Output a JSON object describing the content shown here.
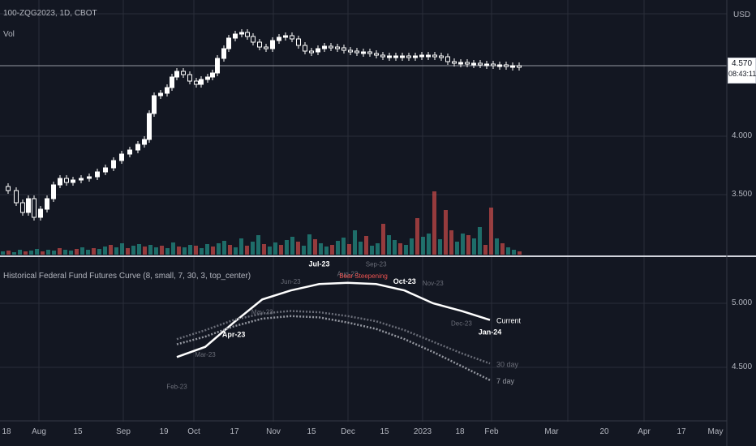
{
  "header": {
    "ticker": "100-ZQG2023, 1D, CBOT",
    "volume_label": "Vol",
    "currency": "USD"
  },
  "price_axis": {
    "ticks": [
      "4.000",
      "3.500"
    ]
  },
  "last_price": {
    "value": "4.570",
    "countdown": "08:43:11"
  },
  "indicator": {
    "title": "Historical Federal Fund Futures Curve (8, small, 7, 30, 3, top_center)",
    "axis_ticks": [
      "5.000",
      "4.500"
    ],
    "regime_label": "Bear Steepening"
  },
  "time_axis": {
    "labels": [
      "18",
      "Aug",
      "15",
      "Sep",
      "19",
      "Oct",
      "17",
      "Nov",
      "15",
      "Dec",
      "15",
      "2023",
      "18",
      "Feb",
      "Mar",
      "20",
      "Apr",
      "17",
      "May"
    ]
  },
  "colors": {
    "background": "#131722",
    "up_candle": "#ffffff",
    "down_candle": "#ffffff",
    "vol_up": "#26a69a",
    "vol_down": "#ef5350",
    "regime": "#ef5350"
  },
  "chart_data": [
    {
      "type": "line",
      "title": "",
      "x_labels": [
        "Feb-23",
        "Mar-23",
        "Apr-23",
        "May-23",
        "Jun-23",
        "Jul-23",
        "Aug-23",
        "Sep-23",
        "Oct-23",
        "Nov-23",
        "Dec-23",
        "Jan-24"
      ],
      "series": [
        {
          "name": "Current",
          "values": [
            4.58,
            4.66,
            4.85,
            5.03,
            5.1,
            5.15,
            5.16,
            5.15,
            5.1,
            5.0,
            4.94,
            4.87
          ]
        },
        {
          "name": "7 day",
          "values": [
            4.68,
            4.74,
            4.82,
            4.88,
            4.9,
            4.89,
            4.85,
            4.8,
            4.72,
            4.62,
            4.51,
            4.4
          ]
        },
        {
          "name": "30 day",
          "values": [
            4.72,
            4.79,
            4.87,
            4.92,
            4.94,
            4.93,
            4.9,
            4.86,
            4.79,
            4.7,
            4.61,
            4.53
          ]
        }
      ],
      "annotations": [
        "Current",
        "7 day",
        "30 day",
        "Bear Steepening"
      ],
      "ylim": [
        4.2,
        5.3
      ],
      "grid": true
    }
  ]
}
